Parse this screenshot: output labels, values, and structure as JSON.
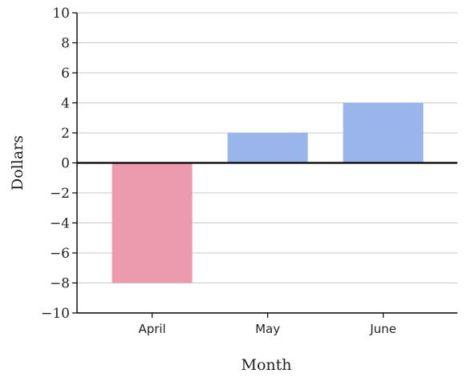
{
  "chart_data": {
    "type": "bar",
    "categories": [
      "April",
      "May",
      "June"
    ],
    "values": [
      -8,
      2,
      4
    ],
    "xlabel": "Month",
    "ylabel": "Dollars",
    "ylim": [
      -10,
      10
    ],
    "yticks": [
      10,
      8,
      6,
      4,
      2,
      0,
      -2,
      -4,
      -6,
      -8,
      -10
    ],
    "ytick_labels": [
      "10",
      "8",
      "6",
      "4",
      "2",
      "0",
      "−2",
      "−4",
      "−6",
      "−8",
      "−10"
    ],
    "grid": true,
    "legend": "none",
    "colors": {
      "positive": "#9ab5ec",
      "negative": "#ec9aae",
      "grid": "#c8c8c8",
      "zero_line": "#000000",
      "axis": "#000000"
    }
  }
}
